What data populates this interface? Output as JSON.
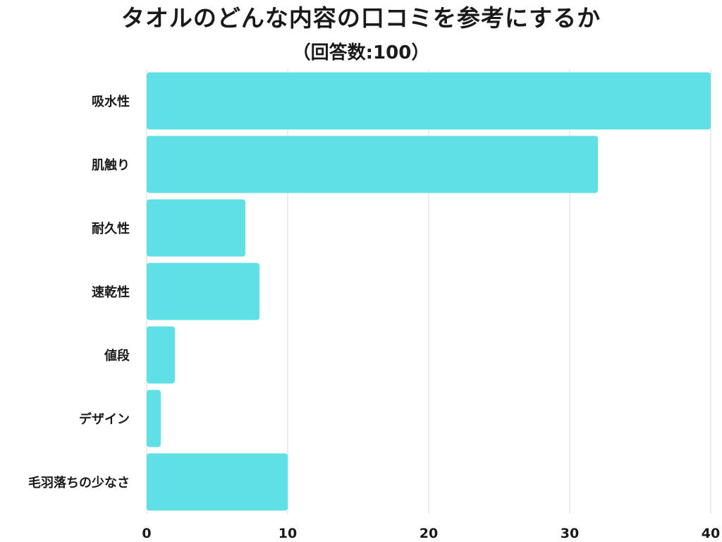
{
  "chart_data": {
    "type": "bar",
    "orientation": "horizontal",
    "title": "タオルのどんな内容の口コミを参考にするか",
    "subtitle": "（回答数:100）",
    "categories": [
      "吸水性",
      "肌触り",
      "耐久性",
      "速乾性",
      "値段",
      "デザイン",
      "毛羽落ちの少なさ"
    ],
    "values": [
      40,
      32,
      7,
      8,
      2,
      1,
      10
    ],
    "xlim": [
      0,
      40
    ],
    "xticks": [
      "0",
      "10",
      "20",
      "30",
      "40"
    ],
    "grid": "vertical",
    "bar_color": "#5ee0e6",
    "grid_color": "#d9d9d9"
  }
}
